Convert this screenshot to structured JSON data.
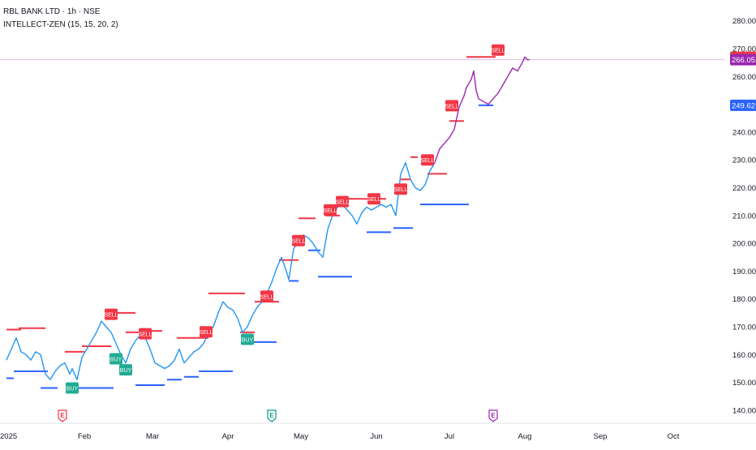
{
  "header": {
    "title": "RBL BANK LTD · 1h · NSE",
    "indicator": "INTELLECT-ZEN (15, 15, 20, 2)"
  },
  "colors": {
    "price_blue": "#2196f3",
    "price_purple": "#9c27b0",
    "resistance": "#f23645",
    "support": "#2962ff",
    "sell_label": "#f23645",
    "buy_label": "#22ab94",
    "crosshair": "#e1bee7"
  },
  "price_axis": {
    "ticks": [
      "280.00",
      "270.00",
      "260.00",
      "250.00",
      "240.00",
      "230.00",
      "220.00",
      "210.00",
      "200.00",
      "190.00",
      "180.00",
      "170.00",
      "160.00",
      "150.00",
      "140.00"
    ],
    "badges": [
      {
        "label": "266.90",
        "value": 266.9,
        "color": "#f23645"
      },
      {
        "label": "266.05",
        "value": 266.05,
        "color": "#9c27b0"
      },
      {
        "label": "249.62",
        "value": 249.62,
        "color": "#2962ff"
      }
    ]
  },
  "time_axis": {
    "ticks": [
      "2025",
      "Feb",
      "Mar",
      "Apr",
      "May",
      "Jun",
      "Jul",
      "Aug",
      "Sep",
      "Oct"
    ]
  },
  "events": [
    {
      "label": "E",
      "date": "2025-01-23",
      "color": "#f23645"
    },
    {
      "label": "E",
      "date": "2025-04-19",
      "color": "#089981"
    },
    {
      "label": "E",
      "date": "2025-07-19",
      "color": "#9c27b0"
    }
  ],
  "chart_data": {
    "type": "line",
    "title": "RBL BANK LTD · 1h · NSE",
    "ylim": [
      136,
      284
    ],
    "series": [
      {
        "name": "",
        "points": [
          [
            "2024-12-31",
            158
          ],
          [
            "2025-01-02",
            162
          ],
          [
            "2025-01-04",
            166
          ],
          [
            "2025-01-06",
            161
          ],
          [
            "2025-01-08",
            160
          ],
          [
            "2025-01-10",
            158
          ],
          [
            "2025-01-12",
            161
          ],
          [
            "2025-01-14",
            160
          ],
          [
            "2025-01-16",
            153
          ],
          [
            "2025-01-18",
            151
          ],
          [
            "2025-01-20",
            154
          ],
          [
            "2025-01-22",
            156
          ],
          [
            "2025-01-24",
            157
          ],
          [
            "2025-01-26",
            153
          ],
          [
            "2025-01-27",
            155
          ],
          [
            "2025-01-29",
            151
          ],
          [
            "2025-01-31",
            159
          ],
          [
            "2025-02-02",
            162
          ],
          [
            "2025-02-04",
            165
          ],
          [
            "2025-02-06",
            168
          ],
          [
            "2025-02-08",
            172
          ],
          [
            "2025-02-10",
            170
          ],
          [
            "2025-02-12",
            168
          ],
          [
            "2025-02-14",
            164
          ],
          [
            "2025-02-16",
            160
          ],
          [
            "2025-02-18",
            157
          ],
          [
            "2025-02-20",
            162
          ],
          [
            "2025-02-22",
            165
          ],
          [
            "2025-02-24",
            167
          ],
          [
            "2025-02-26",
            166
          ],
          [
            "2025-02-28",
            162
          ],
          [
            "2025-03-02",
            157
          ],
          [
            "2025-03-04",
            156
          ],
          [
            "2025-03-06",
            155
          ],
          [
            "2025-03-08",
            156
          ],
          [
            "2025-03-10",
            158
          ],
          [
            "2025-03-12",
            162
          ],
          [
            "2025-03-14",
            157
          ],
          [
            "2025-03-16",
            159
          ],
          [
            "2025-03-18",
            161
          ],
          [
            "2025-03-20",
            162
          ],
          [
            "2025-03-22",
            164
          ],
          [
            "2025-03-24",
            168
          ],
          [
            "2025-03-26",
            170
          ],
          [
            "2025-03-28",
            175
          ],
          [
            "2025-03-30",
            179
          ],
          [
            "2025-04-01",
            177
          ],
          [
            "2025-04-03",
            176
          ],
          [
            "2025-04-05",
            173
          ],
          [
            "2025-04-07",
            168
          ],
          [
            "2025-04-09",
            170
          ],
          [
            "2025-04-11",
            174
          ],
          [
            "2025-04-13",
            177
          ],
          [
            "2025-04-15",
            179
          ],
          [
            "2025-04-17",
            182
          ],
          [
            "2025-04-19",
            186
          ],
          [
            "2025-04-21",
            191
          ],
          [
            "2025-04-23",
            195
          ],
          [
            "2025-04-25",
            190
          ],
          [
            "2025-04-26",
            187
          ],
          [
            "2025-04-28",
            198
          ],
          [
            "2025-04-30",
            201
          ],
          [
            "2025-05-02",
            203
          ],
          [
            "2025-05-04",
            202
          ],
          [
            "2025-05-06",
            200
          ],
          [
            "2025-05-08",
            197
          ],
          [
            "2025-05-10",
            195
          ],
          [
            "2025-05-12",
            205
          ],
          [
            "2025-05-14",
            210
          ],
          [
            "2025-05-16",
            213
          ],
          [
            "2025-05-18",
            214
          ],
          [
            "2025-05-20",
            212
          ],
          [
            "2025-05-22",
            210
          ],
          [
            "2025-05-24",
            207
          ],
          [
            "2025-05-26",
            211
          ],
          [
            "2025-05-28",
            213
          ],
          [
            "2025-05-30",
            212
          ],
          [
            "2025-06-01",
            213
          ],
          [
            "2025-06-03",
            214
          ],
          [
            "2025-06-05",
            213
          ],
          [
            "2025-06-07",
            214
          ],
          [
            "2025-06-09",
            210
          ],
          [
            "2025-06-11",
            225
          ],
          [
            "2025-06-13",
            229
          ],
          [
            "2025-06-15",
            223
          ],
          [
            "2025-06-17",
            220
          ],
          [
            "2025-06-19",
            219
          ],
          [
            "2025-06-21",
            221
          ],
          [
            "2025-06-23",
            226
          ],
          [
            "2025-06-25",
            229
          ]
        ]
      },
      {
        "name": "",
        "points": [
          [
            "2025-06-25",
            229
          ],
          [
            "2025-06-27",
            234
          ],
          [
            "2025-06-29",
            236
          ],
          [
            "2025-07-01",
            238
          ],
          [
            "2025-07-03",
            241
          ],
          [
            "2025-07-05",
            249
          ],
          [
            "2025-07-07",
            253
          ],
          [
            "2025-07-08",
            256
          ],
          [
            "2025-07-10",
            259
          ],
          [
            "2025-07-11",
            262
          ],
          [
            "2025-07-12",
            255
          ],
          [
            "2025-07-13",
            252
          ],
          [
            "2025-07-15",
            251
          ],
          [
            "2025-07-17",
            250
          ],
          [
            "2025-07-19",
            252
          ],
          [
            "2025-07-21",
            254
          ],
          [
            "2025-07-23",
            257
          ],
          [
            "2025-07-25",
            260
          ],
          [
            "2025-07-27",
            263
          ],
          [
            "2025-07-29",
            262
          ],
          [
            "2025-07-31",
            265
          ],
          [
            "2025-08-01",
            267
          ],
          [
            "2025-08-02",
            266
          ],
          [
            "2025-08-03",
            266.05
          ]
        ]
      }
    ],
    "resistance_levels": [
      {
        "start": "2024-12-31",
        "end": "2025-01-06",
        "value": 169
      },
      {
        "start": "2025-01-05",
        "end": "2025-01-16",
        "value": 169.5
      },
      {
        "start": "2025-01-24",
        "end": "2025-02-01",
        "value": 161
      },
      {
        "start": "2025-01-31",
        "end": "2025-02-12",
        "value": 163
      },
      {
        "start": "2025-02-10",
        "end": "2025-02-22",
        "value": 175
      },
      {
        "start": "2025-02-18",
        "end": "2025-02-24",
        "value": 168
      },
      {
        "start": "2025-02-25",
        "end": "2025-03-05",
        "value": 168.5
      },
      {
        "start": "2025-03-11",
        "end": "2025-03-24",
        "value": 166
      },
      {
        "start": "2025-03-24",
        "end": "2025-04-08",
        "value": 182
      },
      {
        "start": "2025-04-06",
        "end": "2025-04-12",
        "value": 168
      },
      {
        "start": "2025-04-12",
        "end": "2025-04-22",
        "value": 179
      },
      {
        "start": "2025-04-22",
        "end": "2025-04-30",
        "value": 194
      },
      {
        "start": "2025-04-30",
        "end": "2025-05-07",
        "value": 209
      },
      {
        "start": "2025-05-11",
        "end": "2025-05-17",
        "value": 210
      },
      {
        "start": "2025-05-20",
        "end": "2025-06-05",
        "value": 216
      },
      {
        "start": "2025-06-11",
        "end": "2025-06-15",
        "value": 223
      },
      {
        "start": "2025-06-15",
        "end": "2025-06-18",
        "value": 231
      },
      {
        "start": "2025-06-22",
        "end": "2025-06-30",
        "value": 225
      },
      {
        "start": "2025-07-01",
        "end": "2025-07-07",
        "value": 244
      },
      {
        "start": "2025-07-08",
        "end": "2025-07-20",
        "value": 267
      }
    ],
    "support_levels": [
      {
        "start": "2024-12-31",
        "end": "2025-01-03",
        "value": 151.5
      },
      {
        "start": "2025-01-03",
        "end": "2025-01-17",
        "value": 154
      },
      {
        "start": "2025-01-14",
        "end": "2025-01-21",
        "value": 148
      },
      {
        "start": "2025-01-25",
        "end": "2025-02-13",
        "value": 148
      },
      {
        "start": "2025-02-22",
        "end": "2025-03-06",
        "value": 149
      },
      {
        "start": "2025-03-07",
        "end": "2025-03-13",
        "value": 151
      },
      {
        "start": "2025-03-14",
        "end": "2025-03-20",
        "value": 152
      },
      {
        "start": "2025-03-20",
        "end": "2025-04-03",
        "value": 154
      },
      {
        "start": "2025-04-07",
        "end": "2025-04-21",
        "value": 164.5
      },
      {
        "start": "2025-04-26",
        "end": "2025-04-30",
        "value": 186.5
      },
      {
        "start": "2025-05-04",
        "end": "2025-05-09",
        "value": 197.5
      },
      {
        "start": "2025-05-08",
        "end": "2025-05-22",
        "value": 188
      },
      {
        "start": "2025-05-28",
        "end": "2025-06-07",
        "value": 204
      },
      {
        "start": "2025-06-08",
        "end": "2025-06-16",
        "value": 205.5
      },
      {
        "start": "2025-06-19",
        "end": "2025-07-09",
        "value": 214
      },
      {
        "start": "2025-07-13",
        "end": "2025-07-19",
        "value": 249.62
      }
    ],
    "signals": [
      {
        "type": "SELL",
        "date": "2025-02-12",
        "value": 174.5
      },
      {
        "type": "SELL",
        "date": "2025-02-26",
        "value": 167.5
      },
      {
        "type": "SELL",
        "date": "2025-03-23",
        "value": 168.2
      },
      {
        "type": "SELL",
        "date": "2025-04-17",
        "value": 181
      },
      {
        "type": "SELL",
        "date": "2025-04-30",
        "value": 201
      },
      {
        "type": "SELL",
        "date": "2025-05-13",
        "value": 212
      },
      {
        "type": "SELL",
        "date": "2025-05-18",
        "value": 215
      },
      {
        "type": "SELL",
        "date": "2025-05-31",
        "value": 216
      },
      {
        "type": "SELL",
        "date": "2025-06-11",
        "value": 219.5
      },
      {
        "type": "SELL",
        "date": "2025-06-22",
        "value": 230
      },
      {
        "type": "SELL",
        "date": "2025-07-02",
        "value": 249.5
      },
      {
        "type": "SELL",
        "date": "2025-07-21",
        "value": 269.5
      },
      {
        "type": "BUY",
        "date": "2025-01-27",
        "value": 148
      },
      {
        "type": "BUY",
        "date": "2025-02-14",
        "value": 158.5
      },
      {
        "type": "BUY",
        "date": "2025-02-18",
        "value": 154.5
      },
      {
        "type": "BUY",
        "date": "2025-04-09",
        "value": 165.5
      }
    ]
  }
}
